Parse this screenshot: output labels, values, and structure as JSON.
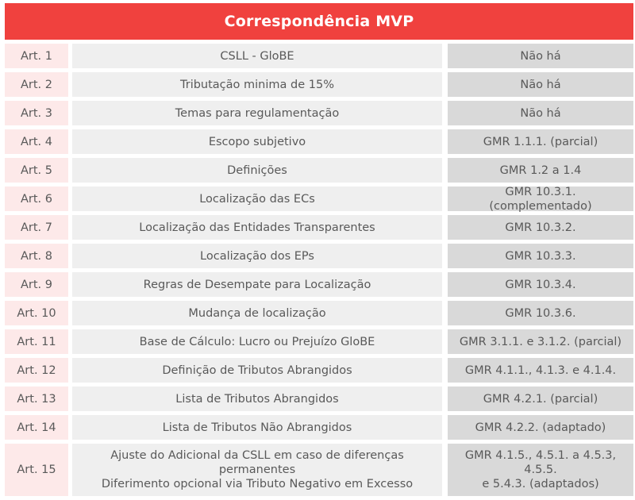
{
  "title": "Correspondência MVP",
  "rows": [
    {
      "art": "Art. 1",
      "topic": "CSLL - GloBE",
      "gmr": "Não há"
    },
    {
      "art": "Art. 2",
      "topic": "Tributação minima de 15%",
      "gmr": "Não há"
    },
    {
      "art": "Art. 3",
      "topic": "Temas para regulamentação",
      "gmr": "Não há"
    },
    {
      "art": "Art. 4",
      "topic": "Escopo subjetivo",
      "gmr": "GMR 1.1.1. (parcial)"
    },
    {
      "art": "Art. 5",
      "topic": "Definições",
      "gmr": "GMR 1.2 a 1.4"
    },
    {
      "art": "Art. 6",
      "topic": "Localização das ECs",
      "gmr": "GMR 10.3.1. (complementado)"
    },
    {
      "art": "Art. 7",
      "topic": "Localização das Entidades Transparentes",
      "gmr": "GMR 10.3.2."
    },
    {
      "art": "Art. 8",
      "topic": "Localização dos EPs",
      "gmr": "GMR 10.3.3."
    },
    {
      "art": "Art. 9",
      "topic": "Regras de Desempate para Localização",
      "gmr": "GMR 10.3.4."
    },
    {
      "art": "Art. 10",
      "topic": "Mudança de localização",
      "gmr": "GMR 10.3.6."
    },
    {
      "art": "Art. 11",
      "topic": "Base de Cálculo: Lucro ou Prejuízo GloBE",
      "gmr": "GMR 3.1.1. e 3.1.2. (parcial)"
    },
    {
      "art": "Art. 12",
      "topic": "Definição de Tributos Abrangidos",
      "gmr": "GMR 4.1.1.,  4.1.3. e  4.1.4."
    },
    {
      "art": "Art. 13",
      "topic": "Lista de Tributos Abrangidos",
      "gmr": "GMR 4.2.1. (parcial)"
    },
    {
      "art": "Art. 14",
      "topic": "Lista de Tributos Não Abrangidos",
      "gmr": "GMR 4.2.2. (adaptado)"
    }
  ],
  "last_row": {
    "art": "Art. 15",
    "topic_line1": "Ajuste do Adicional da CSLL em caso de diferenças permanentes",
    "topic_line2": "Diferimento opcional via Tributo Negativo em Excesso",
    "gmr_line1": "GMR 4.1.5., 4.5.1. a 4.5.3, 4.5.5.",
    "gmr_line2": "e 5.4.3. (adaptados)"
  }
}
